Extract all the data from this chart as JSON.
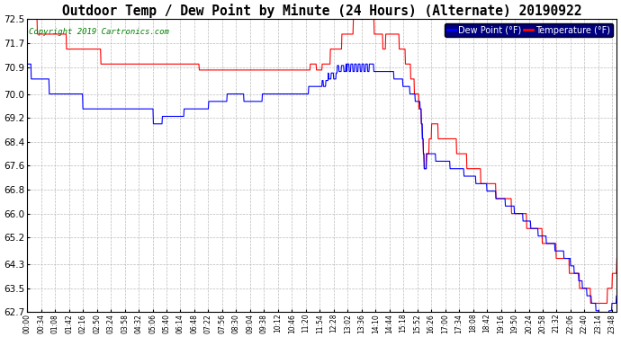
{
  "title": "Outdoor Temp / Dew Point by Minute (24 Hours) (Alternate) 20190922",
  "copyright": "Copyright 2019 Cartronics.com",
  "legend_labels": [
    "Dew Point (°F)",
    "Temperature (°F)"
  ],
  "legend_colors": [
    "blue",
    "red"
  ],
  "legend_bg": "navy",
  "ylim": [
    62.7,
    72.5
  ],
  "yticks": [
    62.7,
    63.5,
    64.3,
    65.2,
    66.0,
    66.8,
    67.6,
    68.4,
    69.2,
    70.0,
    70.9,
    71.7,
    72.5
  ],
  "bg_color": "white",
  "grid_color": "#bbbbbb",
  "dew_color": "blue",
  "temp_color": "red",
  "title_fontsize": 10.5,
  "copyright_fontsize": 6.5,
  "tick_fontsize": 5.5,
  "ytick_fontsize": 7.5
}
